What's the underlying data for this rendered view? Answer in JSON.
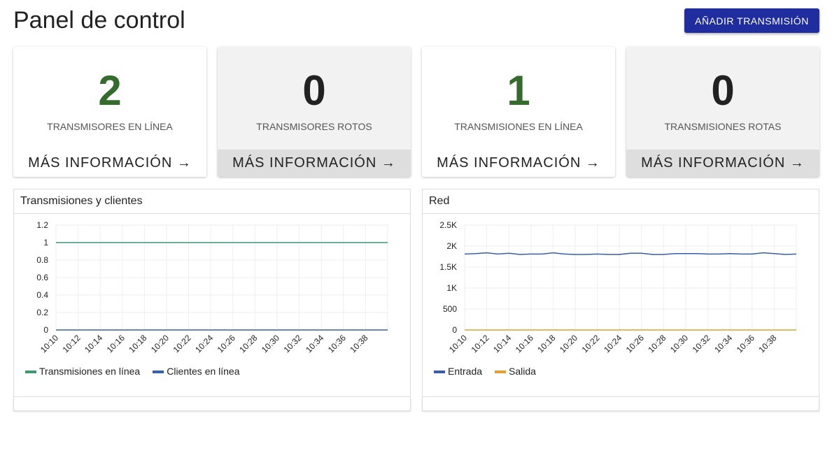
{
  "header": {
    "title": "Panel de control",
    "button": "AÑADIR TRANSMISIÓN"
  },
  "cards": [
    {
      "value": 2,
      "label": "TRANSMISORES EN LÍNEA",
      "link": "MÁS INFORMACIÓN →",
      "color": "#356b2c"
    },
    {
      "value": 0,
      "label": "TRANSMISORES ROTOS",
      "link": "MÁS INFORMACIÓN →",
      "color": "#222222"
    },
    {
      "value": 1,
      "label": "TRANSMISIONES EN LÍNEA",
      "link": "MÁS INFORMACIÓN →",
      "color": "#356b2c"
    },
    {
      "value": 0,
      "label": "TRANSMISIONES ROTAS",
      "link": "MÁS INFORMACIÓN →",
      "color": "#222222"
    }
  ],
  "chart_data": [
    {
      "type": "line",
      "title": "Transmisiones y clientes",
      "categories": [
        "10:10",
        null,
        "10:12",
        null,
        "10:14",
        null,
        "10:16",
        null,
        "10:18",
        null,
        "10:20",
        null,
        "10:22",
        null,
        "10:24",
        null,
        "10:26",
        null,
        "10:28",
        null,
        "10:30",
        null,
        "10:32",
        null,
        "10:34",
        null,
        "10:36",
        null,
        "10:38",
        null,
        null
      ],
      "series": [
        {
          "name": "Transmisiones en línea",
          "color": "#3d9970",
          "values": [
            1,
            1,
            1,
            1,
            1,
            1,
            1,
            1,
            1,
            1,
            1,
            1,
            1,
            1,
            1,
            1,
            1,
            1,
            1,
            1,
            1,
            1,
            1,
            1,
            1,
            1,
            1,
            1,
            1,
            1,
            1
          ]
        },
        {
          "name": "Clientes en línea",
          "color": "#3a5ea8",
          "values": [
            0,
            0,
            0,
            0,
            0,
            0,
            0,
            0,
            0,
            0,
            0,
            0,
            0,
            0,
            0,
            0,
            0,
            0,
            0,
            0,
            0,
            0,
            0,
            0,
            0,
            0,
            0,
            0,
            0,
            0,
            0
          ]
        }
      ],
      "ylim": [
        0,
        1.2
      ],
      "yticks": [
        0,
        0.2,
        0.4,
        0.6,
        0.8,
        1,
        1.2
      ],
      "grid": true
    },
    {
      "type": "line",
      "title": "Red",
      "categories": [
        "10:10",
        null,
        "10:12",
        null,
        "10:14",
        null,
        "10:16",
        null,
        "10:18",
        null,
        "10:20",
        null,
        "10:22",
        null,
        "10:24",
        null,
        "10:26",
        null,
        "10:28",
        null,
        "10:30",
        null,
        "10:32",
        null,
        "10:34",
        null,
        "10:36",
        null,
        "10:38",
        null,
        null
      ],
      "series": [
        {
          "name": "Entrada",
          "color": "#3a5ea8",
          "values": [
            1810,
            1820,
            1840,
            1810,
            1830,
            1800,
            1810,
            1810,
            1840,
            1810,
            1800,
            1800,
            1810,
            1800,
            1800,
            1830,
            1830,
            1800,
            1800,
            1820,
            1820,
            1820,
            1810,
            1810,
            1820,
            1810,
            1810,
            1840,
            1820,
            1800,
            1810
          ]
        },
        {
          "name": "Salida",
          "color": "#e0a030",
          "values": [
            0,
            0,
            0,
            0,
            0,
            0,
            0,
            0,
            0,
            0,
            0,
            0,
            0,
            0,
            0,
            0,
            0,
            0,
            0,
            0,
            0,
            0,
            0,
            0,
            0,
            0,
            0,
            0,
            0,
            0,
            0
          ]
        }
      ],
      "ylim": [
        0,
        2500
      ],
      "yticks": [
        0,
        500,
        {
          "value": 1000,
          "label": "1K"
        },
        {
          "value": 1500,
          "label": "1.5K"
        },
        {
          "value": 2000,
          "label": "2K"
        },
        {
          "value": 2500,
          "label": "2.5K"
        }
      ],
      "grid": true
    }
  ]
}
